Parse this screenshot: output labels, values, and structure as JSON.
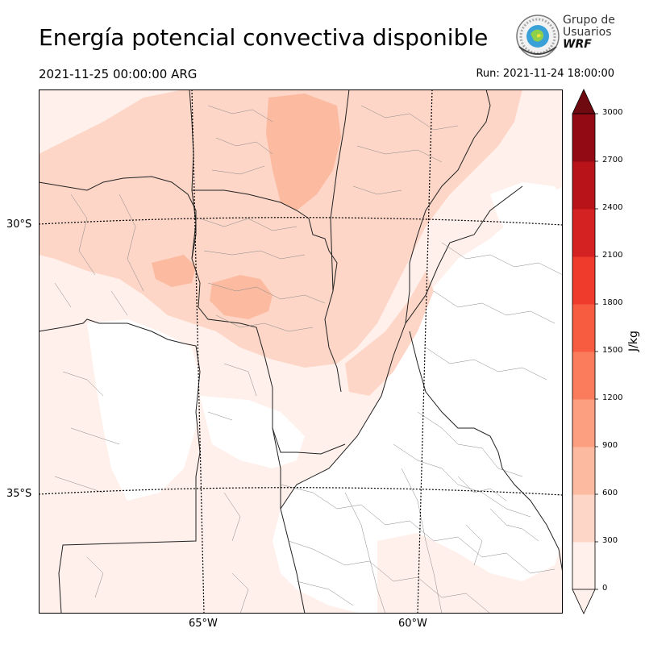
{
  "title": "Energía potencial convectiva disponible",
  "date_left": "2021-11-25 00:00:00 ARG",
  "run_label": "Run: 2021-11-24 18:00:00",
  "logo": {
    "line1": "Grupo de",
    "line2": "Usuarios",
    "line3": "WRF",
    "icon": "wrf-globe-logo-icon"
  },
  "map": {
    "lat_labels": [
      "30°S",
      "35°S"
    ],
    "lon_labels": [
      "65°W",
      "60°W"
    ]
  },
  "colorbar": {
    "unit": "J/kg",
    "ticks": [
      "0",
      "300",
      "600",
      "900",
      "1200",
      "1500",
      "1800",
      "2100",
      "2400",
      "2700",
      "3000"
    ],
    "colors": [
      "#fff0eb",
      "#fdd6c7",
      "#fcbba1",
      "#fc9e80",
      "#fb7c5c",
      "#f75c41",
      "#ee3b2c",
      "#d42121",
      "#b71319",
      "#920b14",
      "#6f0a11"
    ]
  }
}
